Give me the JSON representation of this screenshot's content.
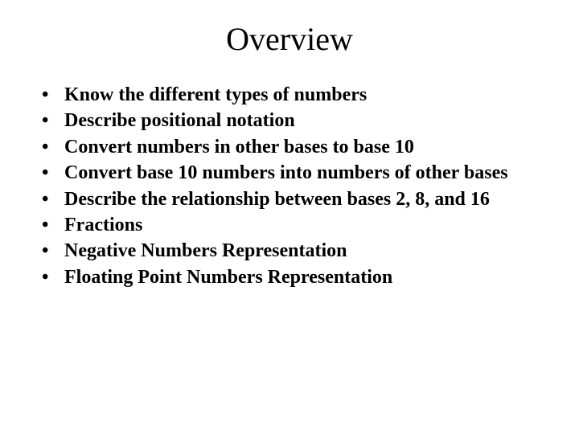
{
  "slide": {
    "title": "Overview",
    "title_fontsize": 40,
    "title_fontweight": "normal",
    "bullets": [
      "Know the different types of numbers",
      "Describe positional notation",
      "Convert numbers in other bases to base 10",
      "Convert base 10 numbers into numbers of other bases",
      "Describe the relationship between bases 2, 8, and 16",
      "Fractions",
      "Negative Numbers Representation",
      "Floating Point Numbers Representation"
    ],
    "bullet_fontsize": 24,
    "bullet_fontweight": "bold",
    "bullet_marker": "•",
    "background_color": "#ffffff",
    "text_color": "#000000",
    "font_family": "Times New Roman"
  }
}
